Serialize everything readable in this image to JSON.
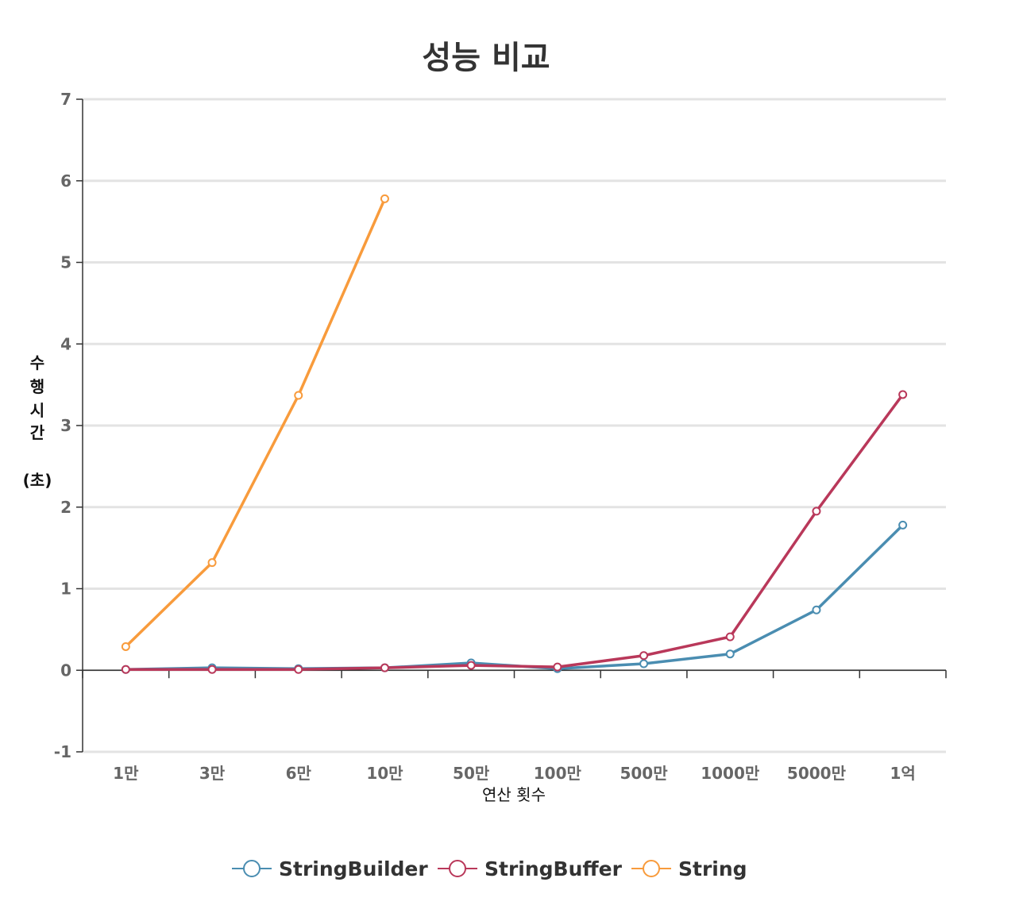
{
  "chart_data": {
    "type": "line",
    "title": "성능 비교",
    "xlabel": "연산 횟수",
    "ylabel_chars": [
      "수",
      "행",
      "시",
      "간",
      "",
      "(초)"
    ],
    "categories": [
      "1만",
      "3만",
      "6만",
      "10만",
      "50만",
      "100만",
      "500만",
      "1000만",
      "5000만",
      "1억"
    ],
    "yticks": [
      "-1",
      "0",
      "1",
      "2",
      "3",
      "4",
      "5",
      "6",
      "7"
    ],
    "ylim": [
      -1,
      7
    ],
    "grid": true,
    "legend_position": "bottom",
    "series": [
      {
        "name": "StringBuilder",
        "color": "#4a8db1",
        "values": [
          0.01,
          0.03,
          0.02,
          0.03,
          0.09,
          0.02,
          0.08,
          0.2,
          0.74,
          1.78
        ]
      },
      {
        "name": "StringBuffer",
        "color": "#b9385a",
        "values": [
          0.01,
          0.01,
          0.01,
          0.03,
          0.06,
          0.04,
          0.18,
          0.41,
          1.95,
          3.38
        ]
      },
      {
        "name": "String",
        "color": "#f89b3c",
        "values": [
          0.29,
          1.32,
          3.37,
          5.78,
          null,
          null,
          null,
          null,
          null,
          null
        ]
      }
    ]
  }
}
